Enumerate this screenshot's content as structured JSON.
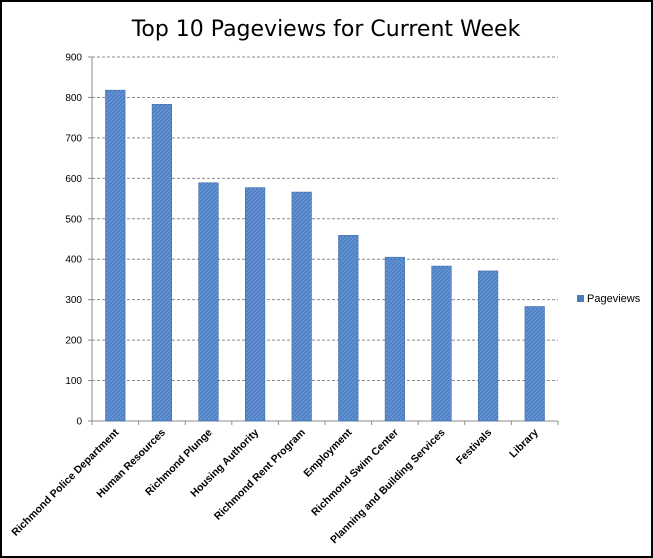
{
  "chart_data": {
    "type": "bar",
    "title": "Top 10 Pageviews for Current Week",
    "categories": [
      "Richmond Police Department",
      "Human Resources",
      "Richmond Plunge",
      "Housing Authority",
      "Richmond Rent Program",
      "Employment",
      "Richmond Swim Center",
      "Planning and Building Services",
      "Festivals",
      "Library"
    ],
    "series": [
      {
        "name": "Pageviews",
        "color": "#4a7ebb",
        "values": [
          818,
          783,
          589,
          577,
          566,
          459,
          405,
          383,
          371,
          283
        ]
      }
    ],
    "ylim": [
      0,
      900
    ],
    "yticks": [
      "0",
      "100",
      "200",
      "300",
      "400",
      "500",
      "600",
      "700",
      "800",
      "900"
    ],
    "xlabel": "",
    "ylabel": "",
    "grid": true,
    "legend": "right"
  }
}
